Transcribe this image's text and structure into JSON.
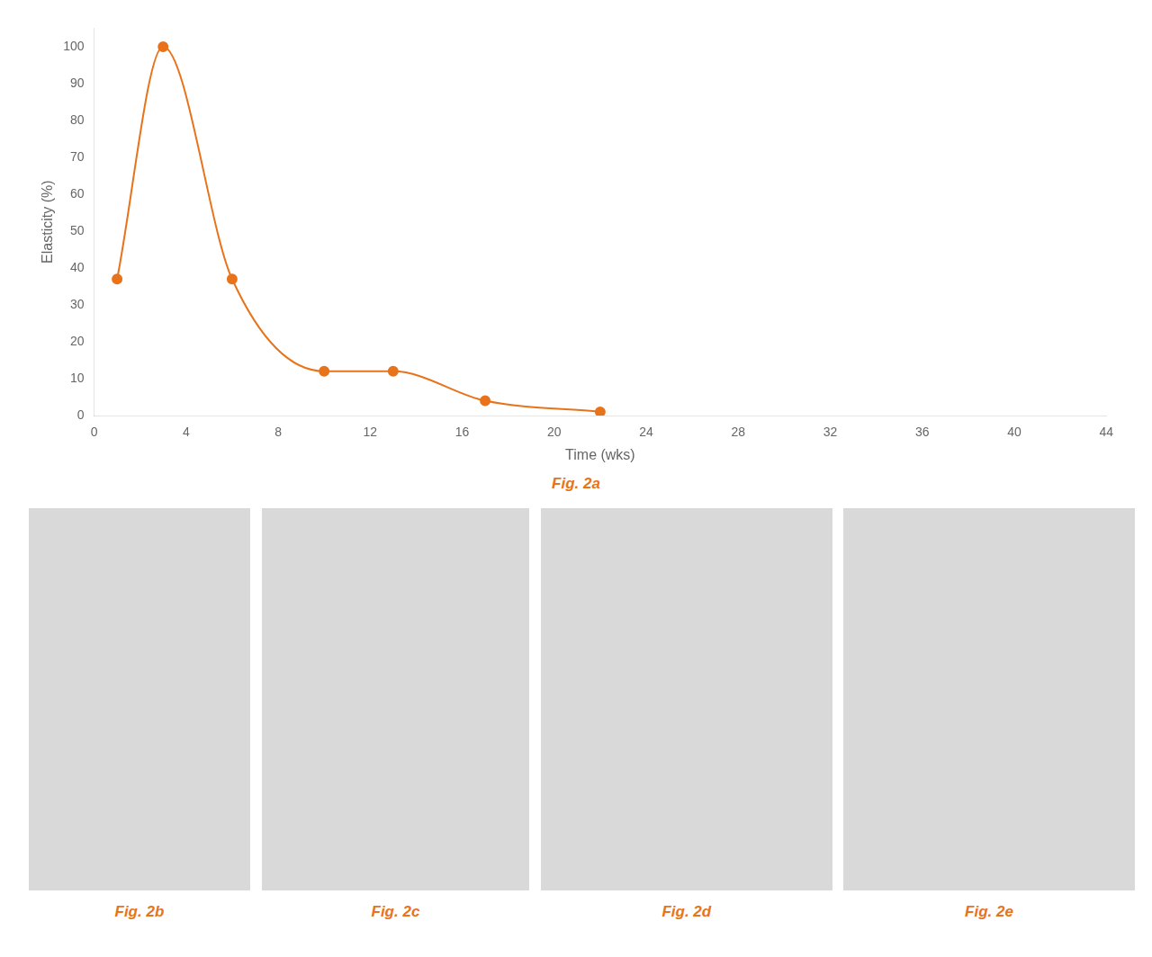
{
  "chart_data": {
    "type": "line",
    "x": [
      1,
      3,
      6,
      10,
      13,
      17,
      22
    ],
    "values": [
      37,
      100,
      37,
      12,
      12,
      4,
      1
    ],
    "color": "#E8731A",
    "marker": "circle",
    "xlabel": "Time (wks)",
    "ylabel": "Elasticity (%)",
    "xlim": [
      0,
      44
    ],
    "ylim": [
      0,
      105
    ],
    "xticks": [
      0,
      4,
      8,
      12,
      16,
      20,
      24,
      28,
      32,
      36,
      40,
      44
    ],
    "yticks": [
      0,
      10,
      20,
      30,
      40,
      50,
      60,
      70,
      80,
      90,
      100
    ],
    "grid": false,
    "annotations": [
      "Fig. 2a",
      "Fig. 2b",
      "Fig. 2c",
      "Fig. 2d",
      "Fig. 2e"
    ]
  }
}
